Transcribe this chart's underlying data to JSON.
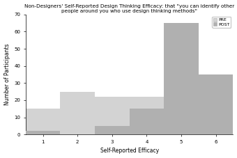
{
  "title": "Non-Designers' Self-Reported Design Thinking Efficacy: that \"you can identify other people around you who use design thinking methods\"",
  "xlabel": "Self-Reported Efficacy",
  "ylabel": "Number of Participants",
  "bin_edges": [
    0.5,
    1.5,
    2.5,
    3.5,
    4.5,
    5.5,
    6.5
  ],
  "pre_values": [
    15,
    25,
    22,
    22,
    0,
    0
  ],
  "post_values": [
    2,
    0,
    5,
    15,
    65,
    35
  ],
  "pre_color": "#d3d3d3",
  "post_color": "#b0b0b0",
  "ylim": [
    0,
    70
  ],
  "yticks": [
    0,
    10,
    20,
    30,
    40,
    50,
    60,
    70
  ],
  "xticks": [
    1,
    2,
    3,
    4,
    5,
    6
  ],
  "xlim": [
    0.5,
    6.5
  ],
  "legend_pre": "PRE",
  "legend_post": "POST",
  "title_fontsize": 5.2,
  "axis_fontsize": 5.5,
  "tick_fontsize": 5,
  "legend_fontsize": 4.5
}
